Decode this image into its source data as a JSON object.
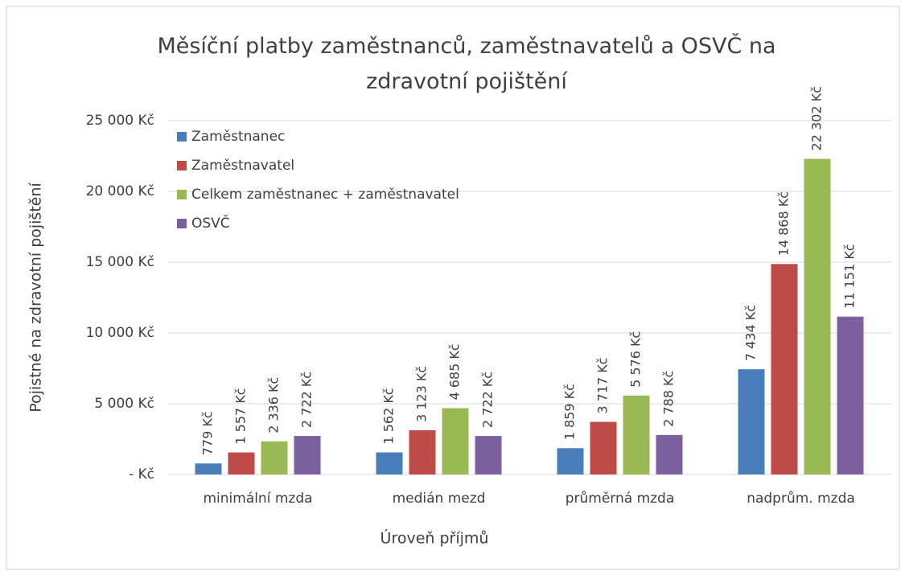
{
  "chart_data": {
    "type": "bar",
    "title": "Měsíční platby zaměstnanců, zaměstnavatelů a OSVČ na zdravotní pojištění",
    "x_label": "Úroveň příjmů",
    "y_label": "Pojistné na zdravotní pojištění",
    "categories": [
      "minimální mzda",
      "medián mezd",
      "průměrná mzda",
      "nadprům. mzda"
    ],
    "series": [
      {
        "name": "Zaměstnanec",
        "color": "#4a7ebb",
        "values": [
          779,
          1562,
          1859,
          7434
        ],
        "value_labels": [
          "779 Kč",
          "1 562 Kč",
          "1 859 Kč",
          "7 434 Kč"
        ]
      },
      {
        "name": "Zaměstnavatel",
        "color": "#be4b48",
        "values": [
          1557,
          3123,
          3717,
          14868
        ],
        "value_labels": [
          "1 557 Kč",
          "3 123 Kč",
          "3 717 Kč",
          "14 868 Kč"
        ]
      },
      {
        "name": "Celkem zaměstnanec + zaměstnavatel",
        "color": "#98b954",
        "values": [
          2336,
          4685,
          5576,
          22302
        ],
        "value_labels": [
          "2 336 Kč",
          "4 685 Kč",
          "5 576 Kč",
          "22 302 Kč"
        ]
      },
      {
        "name": "OSVČ",
        "color": "#7d60a0",
        "values": [
          2722,
          2722,
          2788,
          11151
        ],
        "value_labels": [
          "2 722 Kč",
          "2 722 Kč",
          "2 788 Kč",
          "11 151 Kč"
        ]
      }
    ],
    "ylim": [
      0,
      25000
    ],
    "yticks": [
      {
        "value": 0,
        "label": "-   Kč"
      },
      {
        "value": 5000,
        "label": "5 000 Kč"
      },
      {
        "value": 10000,
        "label": "10 000 Kč"
      },
      {
        "value": 15000,
        "label": "15 000 Kč"
      },
      {
        "value": 20000,
        "label": "20 000 Kč"
      },
      {
        "value": 25000,
        "label": "25 000 Kč"
      }
    ],
    "grid": true,
    "legend": "top-left"
  }
}
